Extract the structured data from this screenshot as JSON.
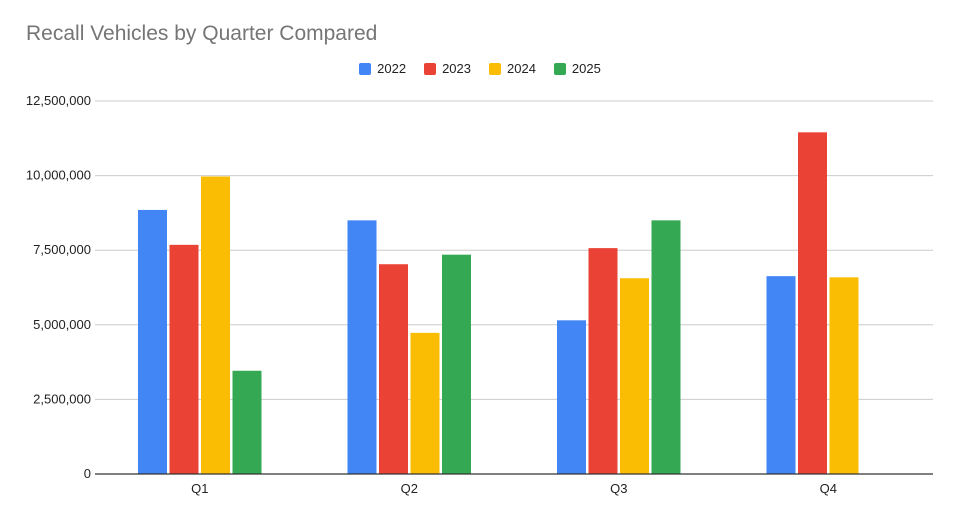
{
  "chart_data": {
    "type": "bar",
    "title": "Recall Vehicles by Quarter Compared",
    "xlabel": "",
    "ylabel": "",
    "categories": [
      "Q1",
      "Q2",
      "Q3",
      "Q4"
    ],
    "series": [
      {
        "name": "2022",
        "color": "#4285f4",
        "values": [
          8850000,
          8500000,
          5150000,
          6630000
        ]
      },
      {
        "name": "2023",
        "color": "#ea4335",
        "values": [
          7680000,
          7030000,
          7570000,
          11450000
        ]
      },
      {
        "name": "2024",
        "color": "#fbbc04",
        "values": [
          9970000,
          4730000,
          6560000,
          6590000
        ]
      },
      {
        "name": "2025",
        "color": "#34a853",
        "values": [
          3460000,
          7350000,
          8500000,
          null
        ]
      }
    ],
    "ylim": [
      0,
      12500000
    ],
    "yticks": [
      0,
      2500000,
      5000000,
      7500000,
      10000000,
      12500000
    ],
    "ytick_labels": [
      "0",
      "2,500,000",
      "5,000,000",
      "7,500,000",
      "10,000,000",
      "12,500,000"
    ],
    "grid": true,
    "legend_position": "top-center"
  }
}
